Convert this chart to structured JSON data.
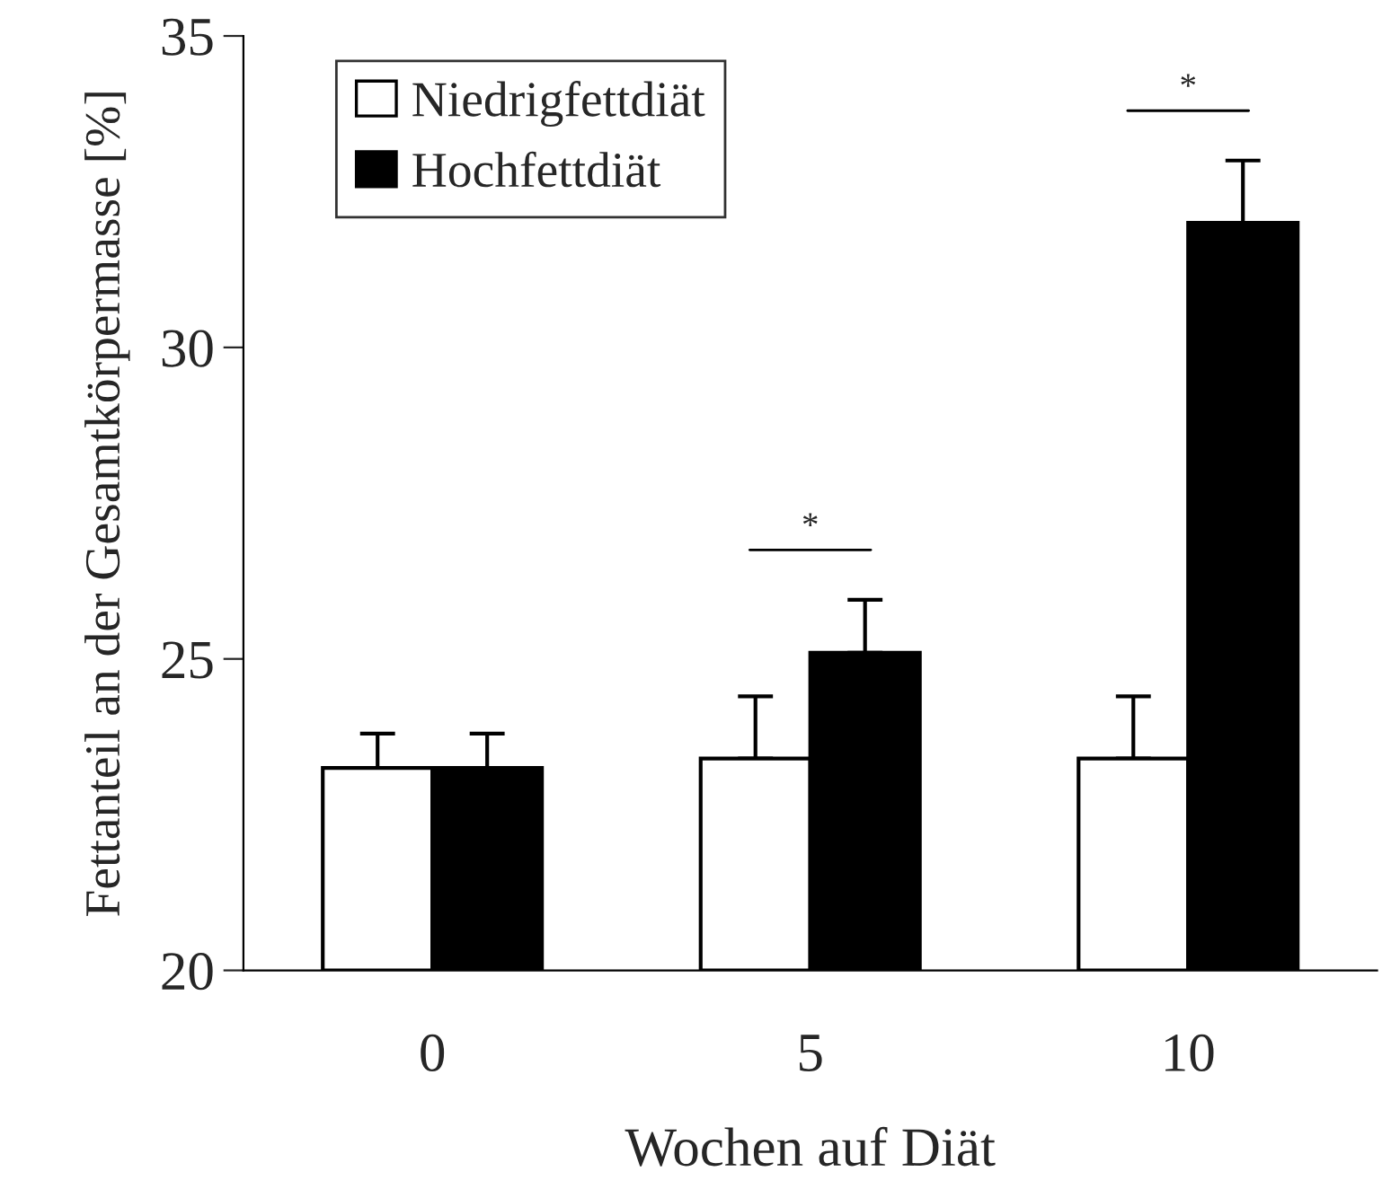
{
  "chart_data": {
    "type": "bar",
    "xlabel": "Wochen auf Diät",
    "ylabel": "Fettanteil an der Gesamtkörpermasse [%]",
    "categories": [
      "0",
      "5",
      "10"
    ],
    "series": [
      {
        "name": "Niedrigfettdiät",
        "color": "#ffffff",
        "values": [
          23.25,
          23.4,
          23.4
        ],
        "errors": [
          0.55,
          1.0,
          1.0
        ]
      },
      {
        "name": "Hochfettdiät",
        "color": "#000000",
        "values": [
          23.25,
          25.1,
          32.0
        ],
        "errors": [
          0.55,
          0.85,
          1.0
        ]
      }
    ],
    "annotations": [
      "*",
      "*"
    ],
    "ylim": [
      20,
      35
    ],
    "yticks": [
      20,
      25,
      30,
      35
    ],
    "grid": false,
    "legend": "top left"
  }
}
